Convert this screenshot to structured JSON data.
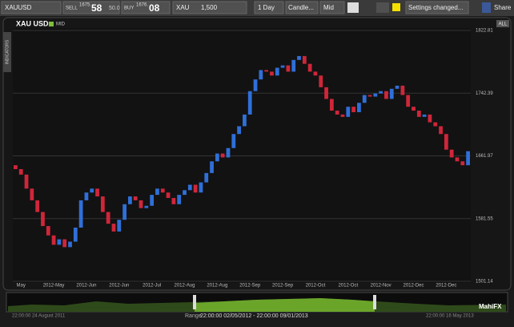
{
  "toolbar": {
    "symbol": "XAUUSD",
    "sell_label": "SELL",
    "sell_small": "1675.",
    "sell_big": "58",
    "spread": "50.0",
    "buy_label": "BUY",
    "buy_small": "1676.",
    "buy_big": "08",
    "unit": "XAU",
    "amount": "1,500",
    "period": "1 Day",
    "chart_style": "Candle...",
    "price_type": "Mid",
    "settings": "Settings changed...",
    "share": "Share"
  },
  "panel": {
    "instrument": "XAU USD",
    "mode": "MID",
    "indicators": "INDICATORS",
    "all": "ALL"
  },
  "navigator": {
    "start": "22:00:00 24 August 2011",
    "range_label": "Range",
    "range": "22:00:00 02/05/2012 - 22:00:00 09/01/2013",
    "end": "22:00:00 16 May 2013",
    "brand": "MahiFX"
  },
  "chart_data": {
    "type": "candlestick",
    "categories": [
      null,
      "May",
      null,
      null,
      null,
      null,
      null,
      "2012-May",
      null,
      null,
      null,
      null,
      null,
      "2012-Jun",
      null,
      null,
      null,
      null,
      null,
      "2012-Jun",
      null,
      null,
      null,
      null,
      null,
      "2012-Jul",
      null,
      null,
      null,
      null,
      null,
      "2012-Aug",
      null,
      null,
      null,
      null,
      null,
      "2012-Aug",
      null,
      null,
      null,
      null,
      null,
      "2012-Sep",
      null,
      null,
      null,
      null,
      null,
      "2012-Sep",
      null,
      null,
      null,
      null,
      null,
      "2012-Oct",
      null,
      null,
      null,
      null,
      null,
      "2012-Oct",
      null,
      null,
      null,
      null,
      null,
      "2012-Nov",
      null,
      null,
      null,
      null,
      null,
      "2012-Dec",
      null,
      null,
      null,
      null,
      null,
      "2012-Dec",
      null,
      null,
      null,
      null
    ],
    "open": [
      1650,
      1645,
      1638,
      1620,
      1605,
      1590,
      1572,
      1560,
      1548,
      1555,
      1545,
      1552,
      1570,
      1605,
      1615,
      1620,
      1610,
      1590,
      1575,
      1565,
      1580,
      1600,
      1610,
      1605,
      1595,
      1598,
      1612,
      1620,
      1615,
      1608,
      1600,
      1612,
      1618,
      1625,
      1615,
      1628,
      1640,
      1655,
      1665,
      1660,
      1672,
      1690,
      1700,
      1715,
      1745,
      1760,
      1772,
      1770,
      1765,
      1775,
      1778,
      1770,
      1785,
      1790,
      1780,
      1770,
      1765,
      1750,
      1735,
      1720,
      1715,
      1712,
      1725,
      1718,
      1730,
      1740,
      1738,
      1742,
      1745,
      1735,
      1748,
      1752,
      1740,
      1725,
      1720,
      1712,
      1715,
      1705,
      1700,
      1690,
      1670,
      1660,
      1655,
      1650
    ],
    "close": [
      1645,
      1638,
      1620,
      1605,
      1590,
      1572,
      1560,
      1548,
      1555,
      1545,
      1552,
      1570,
      1605,
      1615,
      1620,
      1610,
      1590,
      1575,
      1565,
      1580,
      1600,
      1610,
      1605,
      1595,
      1598,
      1612,
      1620,
      1615,
      1608,
      1600,
      1612,
      1618,
      1625,
      1615,
      1628,
      1640,
      1655,
      1665,
      1660,
      1672,
      1690,
      1700,
      1715,
      1745,
      1760,
      1772,
      1770,
      1765,
      1775,
      1778,
      1770,
      1785,
      1790,
      1780,
      1770,
      1765,
      1750,
      1735,
      1720,
      1715,
      1712,
      1725,
      1718,
      1730,
      1740,
      1738,
      1742,
      1745,
      1735,
      1748,
      1752,
      1740,
      1725,
      1720,
      1712,
      1715,
      1705,
      1700,
      1690,
      1670,
      1660,
      1655,
      1650,
      1668
    ],
    "up_color": "#2f6fd8",
    "down_color": "#d0263a",
    "ylim": [
      1501.14,
      1822.81
    ],
    "yticks": [
      1501.14,
      1581.55,
      1661.97,
      1742.39,
      1822.81
    ],
    "grid": true
  }
}
